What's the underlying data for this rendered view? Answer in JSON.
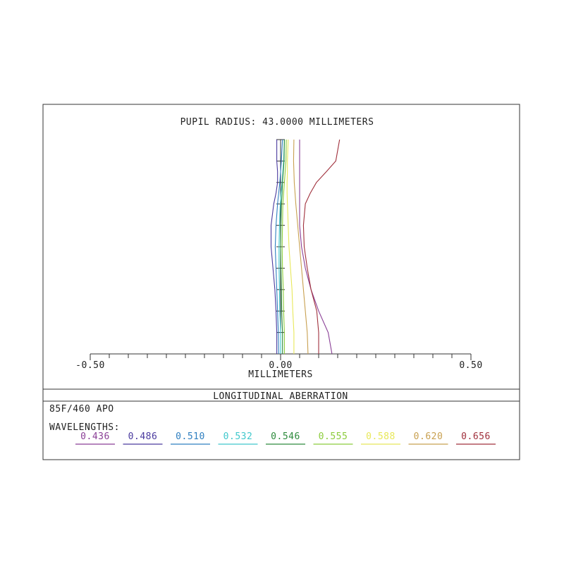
{
  "chart_data": {
    "type": "line",
    "title": "PUPIL RADIUS: 43.0000 MILLIMETERS",
    "xlabel": "MILLIMETERS",
    "caption": "LONGITUDINAL ABERRATION",
    "design_name": "85F/460 APO",
    "legend_title": "WAVELENGTHS:",
    "xlim": [
      -0.5,
      0.5
    ],
    "ylim": [
      0,
      1
    ],
    "x_tick_labels": [
      "-0.50",
      "0.00",
      "0.50"
    ],
    "legend_placement": "bottom",
    "grid": false,
    "series": [
      {
        "name": "0.436",
        "color": "#8a3f96",
        "x": [
          0.135,
          0.125,
          0.1,
          0.08,
          0.065,
          0.055,
          0.05,
          0.05,
          0.05,
          0.05,
          0.05,
          0.05,
          0.05
        ],
        "y": [
          0,
          0.1,
          0.2,
          0.3,
          0.4,
          0.5,
          0.6,
          0.7,
          0.75,
          0.8,
          0.85,
          0.9,
          1.0
        ]
      },
      {
        "name": "0.486",
        "color": "#4a3a9e",
        "x": [
          -0.01,
          -0.01,
          -0.012,
          -0.015,
          -0.02,
          -0.025,
          -0.025,
          -0.018,
          -0.012,
          -0.008,
          -0.008,
          -0.01,
          -0.01
        ],
        "y": [
          0,
          0.1,
          0.2,
          0.3,
          0.4,
          0.5,
          0.6,
          0.7,
          0.75,
          0.8,
          0.85,
          0.9,
          1.0
        ]
      },
      {
        "name": "0.510",
        "color": "#2f7fc0",
        "x": [
          -0.005,
          -0.006,
          -0.008,
          -0.01,
          -0.012,
          -0.014,
          -0.012,
          -0.008,
          -0.005,
          -0.002,
          0.0,
          0.002,
          0.005
        ],
        "y": [
          0,
          0.1,
          0.2,
          0.3,
          0.4,
          0.5,
          0.6,
          0.7,
          0.75,
          0.8,
          0.85,
          0.9,
          1.0
        ]
      },
      {
        "name": "0.532",
        "color": "#40c8cc",
        "x": [
          0.0,
          0.0,
          -0.002,
          -0.003,
          -0.004,
          -0.004,
          -0.003,
          -0.001,
          0.001,
          0.004,
          0.006,
          0.008,
          0.01
        ],
        "y": [
          0,
          0.1,
          0.2,
          0.3,
          0.4,
          0.5,
          0.6,
          0.7,
          0.75,
          0.8,
          0.85,
          0.9,
          1.0
        ]
      },
      {
        "name": "0.546",
        "color": "#2e8b3d",
        "x": [
          0.005,
          0.005,
          0.003,
          0.002,
          0.001,
          0.0,
          0.001,
          0.002,
          0.004,
          0.005,
          0.007,
          0.009,
          0.01
        ],
        "y": [
          0,
          0.1,
          0.2,
          0.3,
          0.4,
          0.5,
          0.6,
          0.7,
          0.75,
          0.8,
          0.85,
          0.9,
          1.0
        ]
      },
      {
        "name": "0.555",
        "color": "#8ccc3c",
        "x": [
          0.01,
          0.01,
          0.008,
          0.007,
          0.005,
          0.004,
          0.005,
          0.006,
          0.008,
          0.01,
          0.012,
          0.014,
          0.015
        ],
        "y": [
          0,
          0.1,
          0.2,
          0.3,
          0.4,
          0.5,
          0.6,
          0.7,
          0.75,
          0.8,
          0.85,
          0.9,
          1.0
        ]
      },
      {
        "name": "0.588",
        "color": "#e8e85a",
        "x": [
          0.035,
          0.035,
          0.032,
          0.03,
          0.026,
          0.022,
          0.02,
          0.018,
          0.017,
          0.017,
          0.018,
          0.018,
          0.02
        ],
        "y": [
          0,
          0.1,
          0.2,
          0.3,
          0.4,
          0.5,
          0.6,
          0.7,
          0.75,
          0.8,
          0.85,
          0.9,
          1.0
        ]
      },
      {
        "name": "0.620",
        "color": "#c8a050",
        "x": [
          0.072,
          0.07,
          0.065,
          0.06,
          0.055,
          0.05,
          0.045,
          0.04,
          0.038,
          0.036,
          0.035,
          0.034,
          0.035
        ],
        "y": [
          0,
          0.1,
          0.2,
          0.3,
          0.4,
          0.5,
          0.6,
          0.7,
          0.75,
          0.8,
          0.85,
          0.9,
          1.0
        ]
      },
      {
        "name": "0.656",
        "color": "#a0303c",
        "x": [
          0.1,
          0.1,
          0.095,
          0.08,
          0.07,
          0.062,
          0.06,
          0.065,
          0.078,
          0.094,
          0.12,
          0.145,
          0.155
        ],
        "y": [
          0,
          0.1,
          0.2,
          0.3,
          0.4,
          0.5,
          0.6,
          0.7,
          0.75,
          0.8,
          0.85,
          0.9,
          1.0
        ]
      }
    ]
  }
}
